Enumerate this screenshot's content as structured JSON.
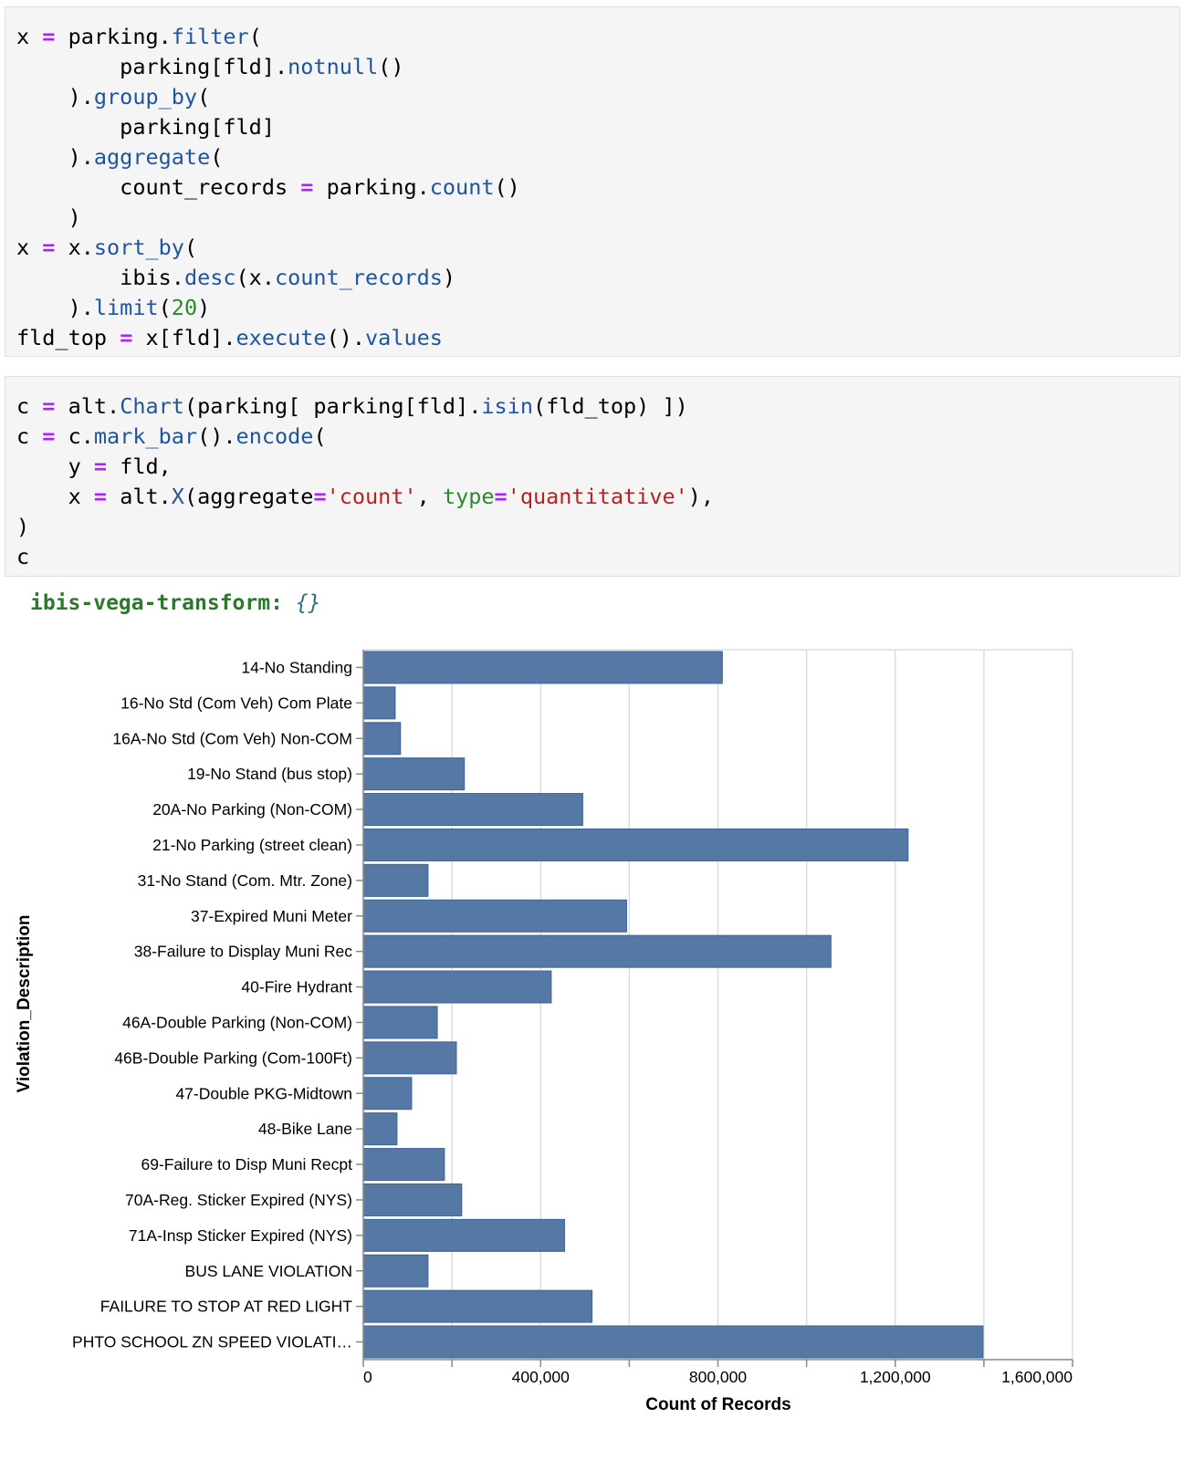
{
  "cells": [
    {
      "lines": [
        [
          [
            "x ",
            ""
          ],
          [
            "=",
            "op"
          ],
          [
            " parking.",
            ""
          ],
          [
            "filter",
            "fn"
          ],
          [
            "(",
            ""
          ]
        ],
        [
          [
            "        parking[fld].",
            ""
          ],
          [
            "notnull",
            "fn"
          ],
          [
            "()",
            ""
          ]
        ],
        [
          [
            "    ).",
            ""
          ],
          [
            "group_by",
            "fn"
          ],
          [
            "(",
            ""
          ]
        ],
        [
          [
            "        parking[fld]",
            ""
          ]
        ],
        [
          [
            "    ).",
            ""
          ],
          [
            "aggregate",
            "fn"
          ],
          [
            "(",
            ""
          ]
        ],
        [
          [
            "        count_records ",
            ""
          ],
          [
            "=",
            "op"
          ],
          [
            " parking.",
            ""
          ],
          [
            "count",
            "fn"
          ],
          [
            "()",
            ""
          ]
        ],
        [
          [
            "    )",
            ""
          ]
        ],
        [
          [
            "x ",
            ""
          ],
          [
            "=",
            "op"
          ],
          [
            " x.",
            ""
          ],
          [
            "sort_by",
            "fn"
          ],
          [
            "(",
            ""
          ]
        ],
        [
          [
            "        ibis.",
            ""
          ],
          [
            "desc",
            "fn"
          ],
          [
            "(x.",
            ""
          ],
          [
            "count_records",
            "fn"
          ],
          [
            ")",
            ""
          ]
        ],
        [
          [
            "    ).",
            ""
          ],
          [
            "limit",
            "fn"
          ],
          [
            "(",
            ""
          ],
          [
            "20",
            "num"
          ],
          [
            ")",
            ""
          ]
        ],
        [
          [
            "fld_top ",
            ""
          ],
          [
            "=",
            "op"
          ],
          [
            " x[fld].",
            ""
          ],
          [
            "execute",
            "fn"
          ],
          [
            "().",
            ""
          ],
          [
            "values",
            "fn"
          ]
        ]
      ]
    },
    {
      "lines": [
        [
          [
            "c ",
            ""
          ],
          [
            "=",
            "op"
          ],
          [
            " alt.",
            ""
          ],
          [
            "Chart",
            "fn"
          ],
          [
            "(parking[ parking[fld].",
            ""
          ],
          [
            "isin",
            "fn"
          ],
          [
            "(fld_top) ])",
            ""
          ]
        ],
        [
          [
            "c ",
            ""
          ],
          [
            "=",
            "op"
          ],
          [
            " c.",
            ""
          ],
          [
            "mark_bar",
            "fn"
          ],
          [
            "().",
            ""
          ],
          [
            "encode",
            "fn"
          ],
          [
            "(",
            ""
          ]
        ],
        [
          [
            "    y ",
            ""
          ],
          [
            "=",
            "op"
          ],
          [
            " fld,",
            ""
          ]
        ],
        [
          [
            "    x ",
            ""
          ],
          [
            "=",
            "op"
          ],
          [
            " alt.",
            ""
          ],
          [
            "X",
            "fn"
          ],
          [
            "(aggregate",
            ""
          ],
          [
            "=",
            "op"
          ],
          [
            "'count'",
            "str"
          ],
          [
            ", ",
            ""
          ],
          [
            "type",
            "kw"
          ],
          [
            "=",
            "op"
          ],
          [
            "'quantitative'",
            "str"
          ],
          [
            "),",
            ""
          ]
        ],
        [
          [
            ")",
            ""
          ]
        ],
        [
          [
            "c",
            ""
          ]
        ]
      ]
    }
  ],
  "output": {
    "label": "ibis-vega-transform:",
    "value": "{}"
  },
  "colors": {
    "bar": "#5578a5",
    "bar_stroke": "#3d6399",
    "grid": "#dddddd",
    "axis": "#888888"
  },
  "chart_data": {
    "type": "bar",
    "orientation": "horizontal",
    "title": "",
    "xlabel": "Count of Records",
    "ylabel": "Violation_Description",
    "xlim": [
      0,
      1600000
    ],
    "xticks": [
      "0",
      "400,000",
      "800,000",
      "1,200,000",
      "1,600,000"
    ],
    "grid": true,
    "legend": null,
    "categories": [
      "14-No Standing",
      "16-No Std (Com Veh) Com Plate",
      "16A-No Std (Com Veh) Non-COM",
      "19-No Stand (bus stop)",
      "20A-No Parking (Non-COM)",
      "21-No Parking (street clean)",
      "31-No Stand (Com. Mtr. Zone)",
      "37-Expired Muni Meter",
      "38-Failure to Display Muni Rec",
      "40-Fire Hydrant",
      "46A-Double Parking (Non-COM)",
      "46B-Double Parking (Com-100Ft)",
      "47-Double PKG-Midtown",
      "48-Bike Lane",
      "69-Failure to Disp Muni Recpt",
      "70A-Reg. Sticker Expired (NYS)",
      "71A-Insp Sticker Expired (NYS)",
      "BUS LANE VIOLATION",
      "FAILURE TO STOP AT RED LIGHT",
      "PHTO SCHOOL ZN SPEED VIOLATI…"
    ],
    "values": [
      810000,
      72000,
      84000,
      228000,
      495000,
      1229000,
      146000,
      594000,
      1055000,
      424000,
      167000,
      210000,
      109000,
      76000,
      183000,
      222000,
      454000,
      146000,
      516000,
      1398000
    ]
  }
}
